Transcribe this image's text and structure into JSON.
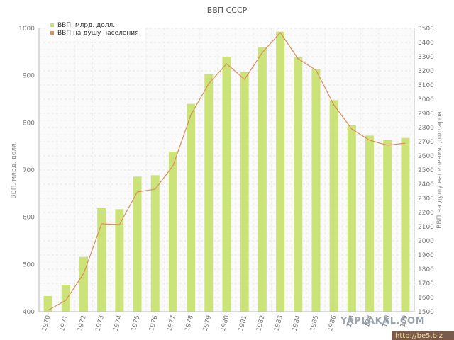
{
  "watermarks": {
    "yaplakal": "YAPLAKAL.COM",
    "be5": "http://be5.biz"
  },
  "chart_data": {
    "type": "bar",
    "title": "ВВП СССР",
    "categories": [
      "1970",
      "1971",
      "1972",
      "1973",
      "1974",
      "1975",
      "1976",
      "1977",
      "1978",
      "1979",
      "1980",
      "1981",
      "1982",
      "1983",
      "1984",
      "1985",
      "1986",
      "1987",
      "1988",
      "1989",
      "1990"
    ],
    "xtick_labels": [
      "1970",
      "1971",
      "1972",
      "1973",
      "1974",
      "1975",
      "1976",
      "1977",
      "1978",
      "1979",
      "1980",
      "1981",
      "1982",
      "1983",
      "1984",
      "1985",
      "1986",
      "198",
      "198",
      "198",
      "199"
    ],
    "series": [
      {
        "name": "ВВП, млрд. долл.",
        "type": "bar",
        "axis": "left",
        "color": "#c6e06a",
        "values": [
          433,
          457,
          516,
          619,
          617,
          686,
          689,
          739,
          840,
          903,
          940,
          908,
          960,
          993,
          939,
          914,
          848,
          795,
          773,
          764,
          768
        ]
      },
      {
        "name": "ВВП на душу населения",
        "type": "line",
        "axis": "right",
        "color": "#d98f5f",
        "values": [
          1510,
          1580,
          1770,
          2120,
          2115,
          2345,
          2365,
          2530,
          2890,
          3110,
          3250,
          3140,
          3330,
          3470,
          3285,
          3205,
          2960,
          2790,
          2710,
          2675,
          2690
        ]
      }
    ],
    "ylabel_left": "ВВП, млрд. долл.",
    "ylabel_right": "ВВП на душу населения, долларов",
    "ylim_left": [
      400,
      1000
    ],
    "yticks_left": [
      "400",
      "500",
      "600",
      "700",
      "800",
      "900",
      "1000"
    ],
    "ylim_right": [
      1500,
      3500
    ],
    "yticks_right": [
      "1500",
      "1600",
      "1700",
      "1800",
      "1900",
      "2000",
      "2100",
      "2200",
      "2300",
      "2400",
      "2500",
      "2600",
      "2700",
      "2800",
      "2900",
      "3000",
      "3100",
      "3200",
      "3300",
      "3400",
      "3500"
    ],
    "grid": true,
    "legend_position": "top-left"
  }
}
